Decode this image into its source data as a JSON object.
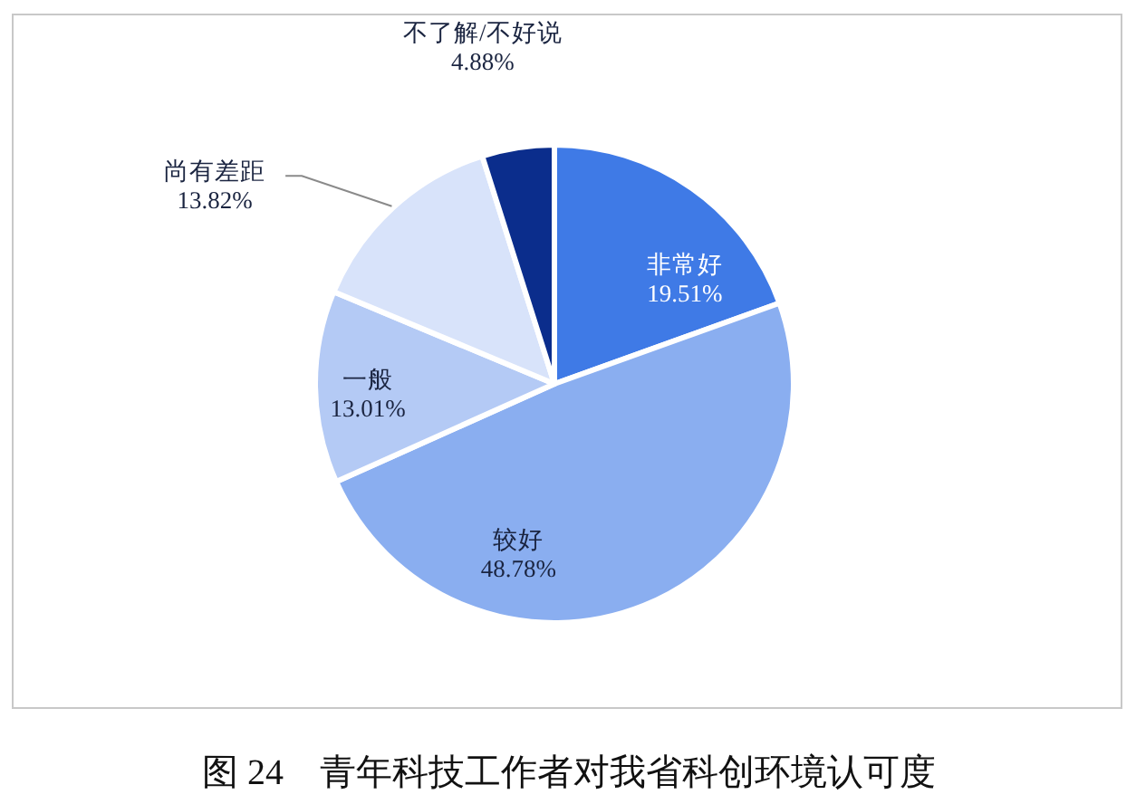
{
  "chart_data": {
    "type": "pie",
    "title": "图 24　青年科技工作者对我省科创环境认可度",
    "categories": [
      "非常好",
      "较好",
      "一般",
      "尚有差距",
      "不了解/不好说"
    ],
    "values": [
      19.51,
      48.78,
      13.01,
      13.82,
      4.88
    ],
    "colors": [
      "#3f7ae6",
      "#8aaef0",
      "#b4caf5",
      "#d8e3fa",
      "#0b2d8c"
    ],
    "value_labels": [
      "19.51%",
      "48.78%",
      "13.01%",
      "13.82%",
      "4.88%"
    ]
  }
}
